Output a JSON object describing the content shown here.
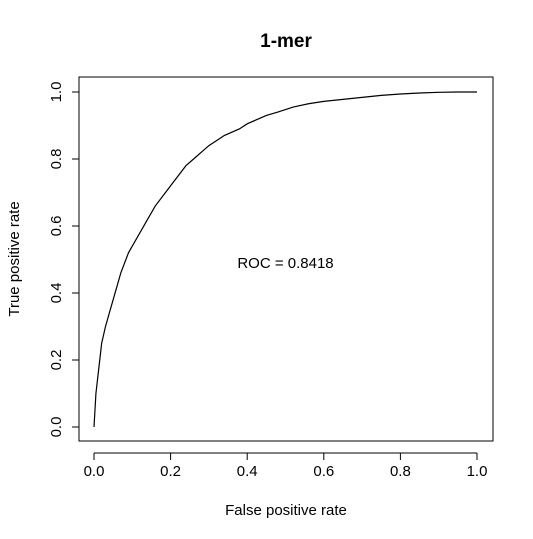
{
  "chart_data": {
    "type": "line",
    "title": "1-mer",
    "xlabel": "False positive rate",
    "ylabel": "True positive rate",
    "xlim": [
      0,
      1
    ],
    "ylim": [
      0,
      1
    ],
    "xticks": [
      "0.0",
      "0.2",
      "0.4",
      "0.6",
      "0.8",
      "1.0"
    ],
    "yticks": [
      "0.0",
      "0.2",
      "0.4",
      "0.6",
      "0.8",
      "1.0"
    ],
    "grid": false,
    "annotation": {
      "text": "ROC = 0.8418",
      "x": 0.5,
      "y": 0.49
    },
    "series": [
      {
        "x": [
          0.0,
          0.005,
          0.01,
          0.015,
          0.02,
          0.03,
          0.04,
          0.05,
          0.06,
          0.07,
          0.08,
          0.09,
          0.1,
          0.12,
          0.14,
          0.16,
          0.18,
          0.2,
          0.22,
          0.24,
          0.26,
          0.28,
          0.3,
          0.32,
          0.34,
          0.36,
          0.38,
          0.4,
          0.42,
          0.45,
          0.48,
          0.52,
          0.56,
          0.6,
          0.65,
          0.7,
          0.75,
          0.8,
          0.85,
          0.9,
          0.95,
          1.0
        ],
        "y": [
          0.0,
          0.1,
          0.15,
          0.2,
          0.25,
          0.3,
          0.34,
          0.38,
          0.42,
          0.46,
          0.49,
          0.52,
          0.54,
          0.58,
          0.62,
          0.66,
          0.69,
          0.72,
          0.75,
          0.78,
          0.8,
          0.82,
          0.84,
          0.855,
          0.87,
          0.88,
          0.89,
          0.905,
          0.915,
          0.93,
          0.94,
          0.955,
          0.965,
          0.972,
          0.978,
          0.984,
          0.99,
          0.994,
          0.997,
          0.999,
          1.0,
          1.0
        ]
      }
    ]
  }
}
